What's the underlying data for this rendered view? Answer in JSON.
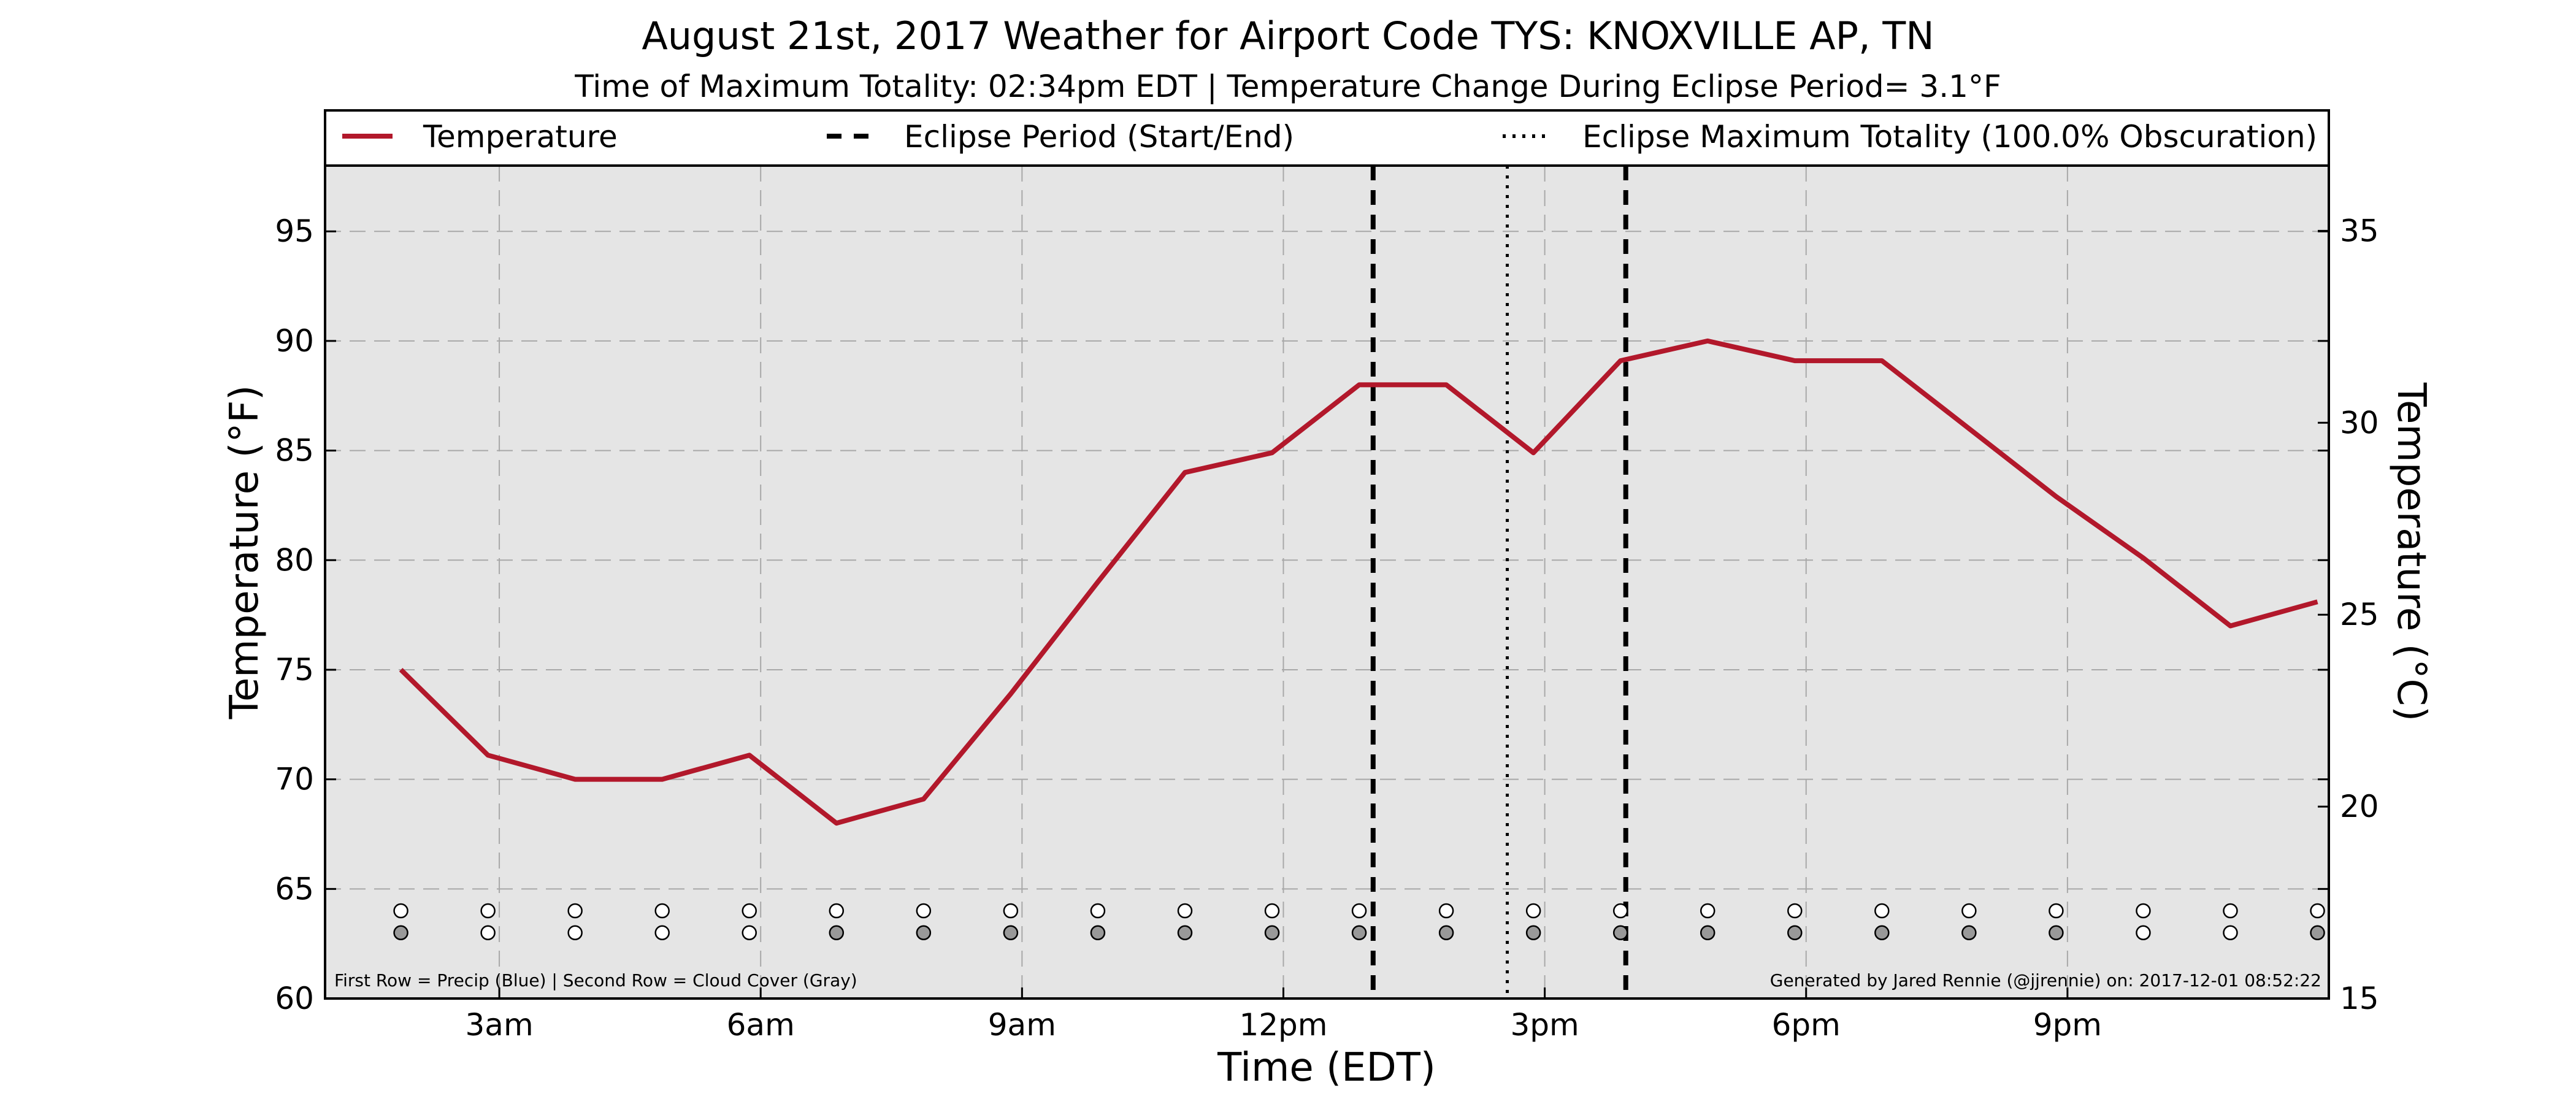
{
  "chart_data": {
    "type": "line",
    "title": "August 21st, 2017 Weather for Airport Code TYS: KNOXVILLE AP, TN",
    "subtitle": "Time of Maximum Totality: 02:34pm EDT | Temperature Change During Eclipse Period= 3.1°F",
    "xlabel": "Time (EDT)",
    "ylabel": "Temperature (°F)",
    "ylabel_right": "Temperature (°C)",
    "xlim": [
      1.0,
      24.0
    ],
    "ylim": [
      60,
      98
    ],
    "ylim_right_celsius": [
      15,
      36.7
    ],
    "x_ticks": [
      {
        "x": 3,
        "label": "3am"
      },
      {
        "x": 6,
        "label": "6am"
      },
      {
        "x": 9,
        "label": "9am"
      },
      {
        "x": 12,
        "label": "12pm"
      },
      {
        "x": 15,
        "label": "3pm"
      },
      {
        "x": 18,
        "label": "6pm"
      },
      {
        "x": 21,
        "label": "9pm"
      }
    ],
    "y_ticks": [
      60,
      65,
      70,
      75,
      80,
      85,
      90,
      95
    ],
    "y_ticks_right": [
      15,
      20,
      25,
      30,
      35
    ],
    "grid": true,
    "legend_position": "top",
    "legend": [
      {
        "label": "Temperature",
        "style": "solid",
        "color": "#b2182b"
      },
      {
        "label": "Eclipse Period (Start/End)",
        "style": "dashed",
        "color": "#000000"
      },
      {
        "label": "Eclipse Maximum Totality (100.0% Obscuration)",
        "style": "dotted",
        "color": "#000000"
      }
    ],
    "series": [
      {
        "name": "Temperature",
        "color": "#b2182b",
        "x": [
          1.87,
          2.87,
          3.87,
          4.87,
          5.87,
          6.87,
          7.87,
          8.87,
          9.87,
          10.87,
          11.87,
          12.87,
          13.87,
          14.87,
          15.87,
          16.87,
          17.87,
          18.87,
          19.87,
          20.87,
          21.87,
          22.87,
          23.87
        ],
        "values": [
          75.0,
          71.1,
          70.0,
          70.0,
          71.1,
          68.0,
          69.1,
          73.9,
          79.0,
          84.0,
          84.9,
          88.0,
          88.0,
          84.9,
          89.1,
          90.0,
          89.1,
          89.1,
          86.0,
          82.9,
          80.1,
          77.0,
          78.1
        ]
      }
    ],
    "eclipse_start": 13.03,
    "eclipse_end": 15.93,
    "eclipse_max": 14.57,
    "marker_rows": {
      "x": [
        1.87,
        2.87,
        3.87,
        4.87,
        5.87,
        6.87,
        7.87,
        8.87,
        9.87,
        10.87,
        11.87,
        12.87,
        13.87,
        14.87,
        15.87,
        16.87,
        17.87,
        18.87,
        19.87,
        20.87,
        21.87,
        22.87,
        23.87
      ],
      "precip_y": 64.0,
      "cloud_y": 63.0,
      "precip_color": "#ffffff",
      "cloud_colors": [
        "#999999",
        "#ffffff",
        "#ffffff",
        "#ffffff",
        "#ffffff",
        "#999999",
        "#999999",
        "#999999",
        "#999999",
        "#999999",
        "#999999",
        "#999999",
        "#999999",
        "#999999",
        "#999999",
        "#999999",
        "#999999",
        "#999999",
        "#999999",
        "#999999",
        "#ffffff",
        "#ffffff",
        "#999999"
      ]
    },
    "note_left": "First Row = Precip (Blue) | Second Row = Cloud Cover (Gray)",
    "note_right": "Generated by Jared Rennie (@jjrennie) on: 2017-12-01 08:52:22",
    "colors": {
      "plot_background": "#e5e5e5",
      "grid": "#a8a8a8",
      "temperature": "#b2182b",
      "eclipse_lines": "#000000"
    }
  }
}
